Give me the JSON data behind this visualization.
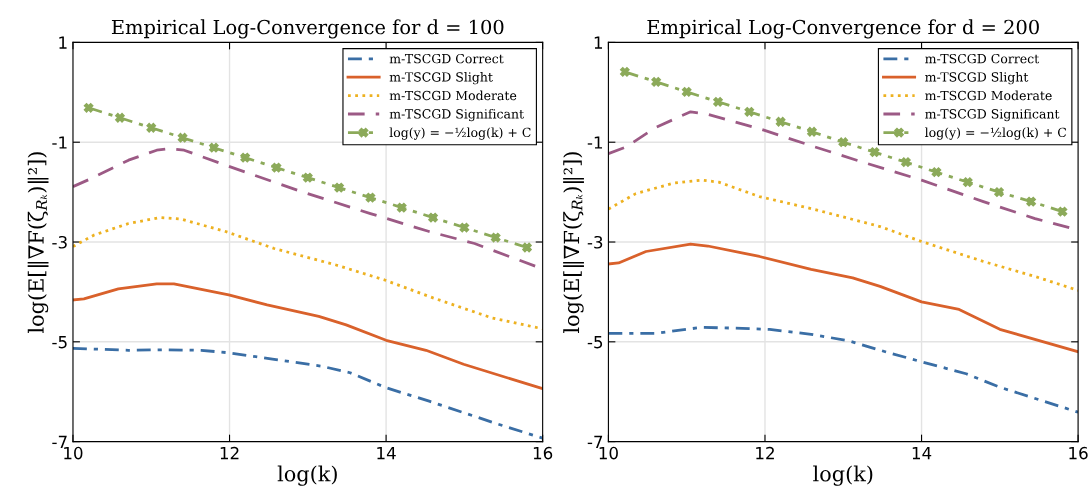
{
  "chart_data": [
    {
      "type": "line",
      "title": "Empirical Log-Convergence for d = 100",
      "xlabel": "log(k)",
      "ylabel": "log(E[‖∇F(ζ$_{Rₖ}$)‖²])",
      "xlim": [
        10,
        16
      ],
      "ylim": [
        -7,
        1
      ],
      "xticks": [
        10,
        12,
        14,
        16
      ],
      "yticks": [
        1,
        -1,
        -3,
        -5,
        -7
      ],
      "grid": true,
      "legend": "top right",
      "series": [
        {
          "name": "m-TSCGD Correct",
          "color": "#3a6ea5",
          "line_style": "dashdot",
          "x": [
            10,
            10.71,
            11.16,
            11.64,
            11.99,
            12.57,
            13.18,
            13.54,
            14.0,
            14.55,
            15.43,
            16
          ],
          "values": [
            -5.13,
            -5.17,
            -5.16,
            -5.17,
            -5.22,
            -5.35,
            -5.49,
            -5.62,
            -5.92,
            -6.19,
            -6.65,
            -6.93
          ]
        },
        {
          "name": "m-TSCGD Slight",
          "color": "#d9612b",
          "line_style": "solid",
          "x": [
            10,
            10.14,
            10.58,
            11.07,
            11.29,
            11.99,
            12.48,
            13.14,
            13.49,
            14.0,
            14.51,
            14.99,
            16
          ],
          "values": [
            -4.16,
            -4.14,
            -3.94,
            -3.84,
            -3.84,
            -4.06,
            -4.26,
            -4.49,
            -4.66,
            -4.97,
            -5.17,
            -5.45,
            -5.94
          ]
        },
        {
          "name": "m-TSCGD Moderate",
          "color": "#edb120",
          "line_style": "dotted",
          "x": [
            10,
            10.27,
            10.71,
            11.11,
            11.38,
            11.95,
            12.57,
            13.36,
            13.98,
            14.6,
            15.35,
            16
          ],
          "values": [
            -3.09,
            -2.86,
            -2.63,
            -2.51,
            -2.54,
            -2.79,
            -3.13,
            -3.46,
            -3.76,
            -4.12,
            -4.52,
            -4.74
          ]
        },
        {
          "name": "m-TSCGD Significant",
          "color": "#9c5a85",
          "line_style": "dashed",
          "x": [
            10,
            10.23,
            10.71,
            11.07,
            11.24,
            11.42,
            11.95,
            12.92,
            13.8,
            14.55,
            15.13,
            16
          ],
          "values": [
            -1.89,
            -1.73,
            -1.36,
            -1.16,
            -1.13,
            -1.16,
            -1.46,
            -1.99,
            -2.43,
            -2.79,
            -3.03,
            -3.54
          ]
        },
        {
          "name": "log(y) = −½log(k) + C",
          "color": "#8caa5a",
          "line_style": "dashdot",
          "marker": "cross",
          "x": [
            10.2,
            10.6,
            11.0,
            11.4,
            11.8,
            12.2,
            12.6,
            13.0,
            13.4,
            13.8,
            14.2,
            14.6,
            15.0,
            15.4,
            15.8
          ],
          "values": [
            -0.31,
            -0.51,
            -0.71,
            -0.91,
            -1.11,
            -1.31,
            -1.51,
            -1.71,
            -1.91,
            -2.11,
            -2.31,
            -2.51,
            -2.71,
            -2.91,
            -3.11
          ]
        }
      ]
    },
    {
      "type": "line",
      "title": "Empirical Log-Convergence for d = 200",
      "xlabel": "log(k)",
      "ylabel": "log(E[‖∇F(ζ$_{Rₖ}$)‖²])",
      "xlim": [
        10,
        16
      ],
      "ylim": [
        -7,
        1
      ],
      "xticks": [
        10,
        12,
        14,
        16
      ],
      "yticks": [
        1,
        -1,
        -3,
        -5,
        -7
      ],
      "grid": true,
      "legend": "top right",
      "series": [
        {
          "name": "m-TSCGD Correct",
          "color": "#3a6ea5",
          "line_style": "dashdot",
          "x": [
            10,
            10.61,
            11.19,
            11.71,
            12.06,
            12.59,
            13.07,
            13.56,
            14.0,
            14.57,
            15.0,
            16
          ],
          "values": [
            -4.83,
            -4.83,
            -4.71,
            -4.73,
            -4.75,
            -4.85,
            -4.98,
            -5.21,
            -5.4,
            -5.64,
            -5.91,
            -6.41
          ]
        },
        {
          "name": "m-TSCGD Slight",
          "color": "#d9612b",
          "line_style": "solid",
          "x": [
            10,
            10.13,
            10.48,
            11.05,
            11.27,
            11.93,
            12.59,
            13.12,
            13.47,
            14.0,
            14.48,
            15.0,
            16
          ],
          "values": [
            -3.44,
            -3.42,
            -3.19,
            -3.04,
            -3.08,
            -3.29,
            -3.55,
            -3.72,
            -3.89,
            -4.2,
            -4.35,
            -4.75,
            -5.2
          ]
        },
        {
          "name": "m-TSCGD Moderate",
          "color": "#edb120",
          "line_style": "dotted",
          "x": [
            10,
            10.35,
            10.83,
            11.19,
            11.41,
            11.93,
            12.59,
            13.47,
            14.0,
            14.79,
            15.45,
            16
          ],
          "values": [
            -2.34,
            -2.03,
            -1.82,
            -1.76,
            -1.8,
            -2.09,
            -2.33,
            -2.69,
            -2.99,
            -3.39,
            -3.69,
            -3.97
          ]
        },
        {
          "name": "m-TSCGD Significant",
          "color": "#9c5a85",
          "line_style": "dashed",
          "x": [
            10,
            10.22,
            10.61,
            11.05,
            11.27,
            11.93,
            12.59,
            13.25,
            14.0,
            14.79,
            15.45,
            16
          ],
          "values": [
            -1.23,
            -1.1,
            -0.7,
            -0.39,
            -0.44,
            -0.73,
            -1.07,
            -1.4,
            -1.76,
            -2.19,
            -2.53,
            -2.76
          ]
        },
        {
          "name": "log(y) = −½log(k) + C",
          "color": "#8caa5a",
          "line_style": "dashdot",
          "marker": "cross",
          "x": [
            10.21,
            10.61,
            11.0,
            11.4,
            11.8,
            12.2,
            12.6,
            13.0,
            13.4,
            13.8,
            14.19,
            14.59,
            14.99,
            15.4,
            15.8
          ],
          "values": [
            0.41,
            0.21,
            0.01,
            -0.19,
            -0.39,
            -0.59,
            -0.79,
            -1.0,
            -1.2,
            -1.4,
            -1.6,
            -1.8,
            -2.0,
            -2.19,
            -2.39
          ]
        }
      ]
    }
  ]
}
